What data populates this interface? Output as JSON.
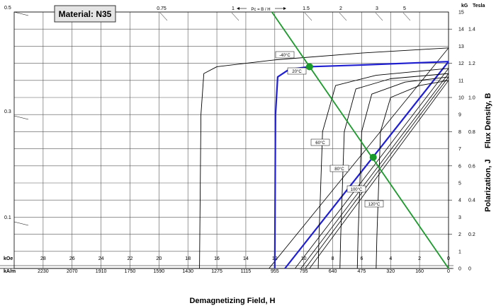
{
  "chart_data": {
    "type": "line",
    "title": "Material: N35",
    "xlabel": "Demagnetizing Field, H",
    "ylabel": "Polarization, J     Flux Density, B",
    "x_unit_primary": "kOe",
    "x_unit_secondary": "kA/m",
    "y_unit_primary": "kG",
    "y_unit_secondary": "Tesla",
    "xlim": [
      30,
      0
    ],
    "ylim": [
      0,
      15
    ],
    "grid": true,
    "x_ticks_koe": [
      "28",
      "26",
      "24",
      "22",
      "20",
      "18",
      "16",
      "14",
      "12",
      "10",
      "8",
      "6",
      "4",
      "2",
      "0"
    ],
    "x_ticks_kam": [
      "2230",
      "2070",
      "1910",
      "1750",
      "1590",
      "1430",
      "1275",
      "1115",
      "955",
      "795",
      "640",
      "475",
      "320",
      "160",
      "0"
    ],
    "y_ticks_kg": [
      "0",
      "1",
      "2",
      "3",
      "4",
      "5",
      "6",
      "7",
      "8",
      "9",
      "10",
      "11",
      "12",
      "13",
      "14",
      "15"
    ],
    "y_ticks_tesla": [
      "0",
      "0.2",
      "0.4",
      "0.6",
      "0.8",
      "1.0",
      "1.2",
      "1.4"
    ],
    "left_ticks": [
      "0.5",
      "0.3",
      "0.1"
    ],
    "pc_ticks": [
      "0.75",
      "1",
      "1.5",
      "2",
      "3",
      "5"
    ],
    "pc_label": "Pc = B / H",
    "temperatures": [
      "-40°C",
      "20°C",
      "60°C",
      "80°C",
      "100°C",
      "120°C"
    ],
    "load_line": {
      "x": [
        12.2,
        0
      ],
      "y": [
        15,
        0
      ]
    },
    "operating_points": [
      {
        "x": 9.6,
        "y": 11.8
      },
      {
        "x": 5.2,
        "y": 6.5
      }
    ],
    "series": [
      {
        "name": "-40°C",
        "color": "#000000",
        "j_x": [
          17.2,
          17.1,
          16.9,
          16.0,
          12.0,
          6.0,
          0.0
        ],
        "j_y": [
          0,
          9.0,
          11.4,
          11.8,
          12.2,
          12.6,
          12.9
        ]
      },
      {
        "name": "20°C",
        "color": "#1f1fcf",
        "j_x": [
          12.0,
          11.95,
          11.8,
          11.0,
          9.6,
          6.0,
          0.0
        ],
        "j_y": [
          0,
          9.0,
          11.2,
          11.65,
          11.8,
          11.9,
          12.1
        ],
        "b_x": [
          11.3,
          0.0
        ],
        "b_y": [
          0,
          12.1
        ]
      },
      {
        "name": "60°C",
        "color": "#000000",
        "j_x": [
          9.0,
          8.95,
          8.7,
          7.8,
          5.0,
          0.0
        ],
        "j_y": [
          0,
          1.8,
          8.0,
          10.7,
          11.3,
          11.7
        ]
      },
      {
        "name": "80°C",
        "color": "#000000",
        "j_x": [
          7.5,
          7.45,
          7.2,
          6.4,
          4.0,
          0.0
        ],
        "j_y": [
          0,
          1.8,
          8.0,
          10.5,
          11.1,
          11.4
        ]
      },
      {
        "name": "100°C",
        "color": "#000000",
        "j_x": [
          6.3,
          6.25,
          6.0,
          5.3,
          3.0,
          0.0
        ],
        "j_y": [
          0,
          1.8,
          8.0,
          10.2,
          10.9,
          11.2
        ]
      },
      {
        "name": "120°C",
        "color": "#000000",
        "j_x": [
          5.0,
          4.95,
          4.7,
          4.0,
          2.0,
          0.0
        ],
        "j_y": [
          0,
          1.8,
          8.0,
          10.0,
          10.7,
          11.0
        ]
      }
    ],
    "b_lines_black": [
      {
        "x": [
          12.4,
          0.0
        ],
        "y": [
          0,
          12.9
        ]
      },
      {
        "x": [
          10.6,
          0.0
        ],
        "y": [
          0,
          11.7
        ]
      },
      {
        "x": [
          10.2,
          0.0
        ],
        "y": [
          0,
          11.4
        ]
      },
      {
        "x": [
          9.9,
          0.0
        ],
        "y": [
          0,
          11.2
        ]
      },
      {
        "x": [
          9.6,
          0.0
        ],
        "y": [
          0,
          11.0
        ]
      }
    ],
    "colors": {
      "grid": "#555555",
      "load_line": "#1a9a2a",
      "blue": "#1f1fcf",
      "black": "#000000"
    }
  }
}
